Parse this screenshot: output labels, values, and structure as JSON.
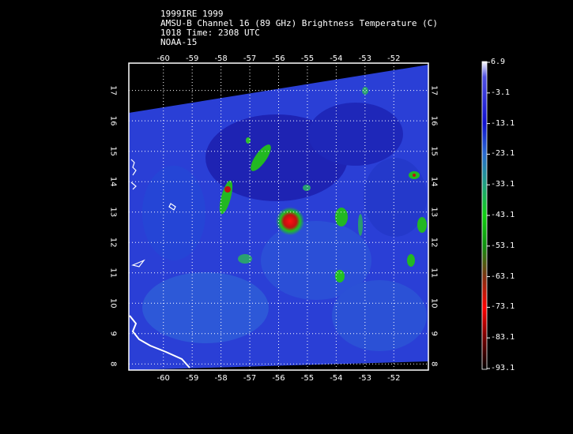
{
  "header": {
    "line1": "1999IRE 1999",
    "line2": "AMSU-B Channel 16 (89 GHz) Brightness Temperature (C)",
    "line3": "1018 Time: 2308 UTC",
    "line4": "NOAA-15"
  },
  "map": {
    "lon_range": [
      -61.2,
      -50.8
    ],
    "lat_range": [
      7.8,
      17.9
    ],
    "lon_ticks": [
      "-60",
      "-59",
      "-58",
      "-57",
      "-56",
      "-55",
      "-54",
      "-53",
      "-52"
    ],
    "lat_ticks": [
      "8",
      "9",
      "10",
      "11",
      "12",
      "13",
      "14",
      "15",
      "16",
      "17"
    ],
    "grid": true,
    "background_color": "#2a3fd6",
    "storm_center": {
      "lon": -55.6,
      "lat": 12.7
    }
  },
  "colorbar": {
    "labels": [
      "6.9",
      "-3.1",
      "-13.1",
      "-23.1",
      "-33.1",
      "-43.1",
      "-53.1",
      "-63.1",
      "-73.1",
      "-83.1",
      "-93.1"
    ],
    "colors": [
      "#ffffff",
      "#3a3ad8",
      "#1010d0",
      "#2a6bd0",
      "#2a9a70",
      "#10d010",
      "#109010",
      "#a01010",
      "#ff0000",
      "#600000",
      "#000000"
    ]
  }
}
